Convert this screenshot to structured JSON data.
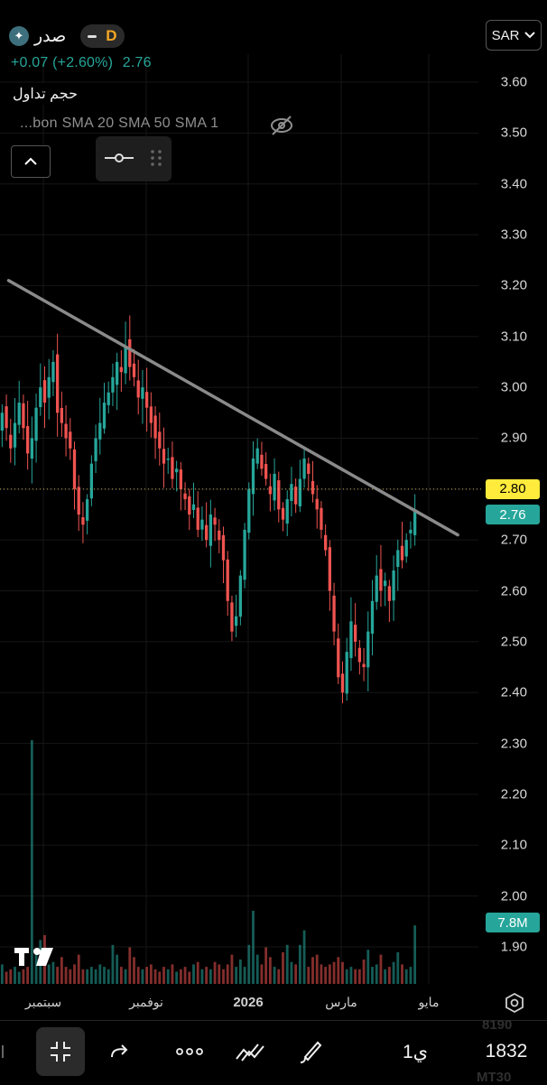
{
  "header": {
    "symbol_logo_icon": "sadr-logo-icon",
    "symbol": "صدر",
    "interval_badge": "D",
    "change": "+0.07 (+2.60%)",
    "last_price": "2.76",
    "volume_label": "حجم تداول",
    "indicators": "...bon SMA 20 SMA 50 SMA 1",
    "currency": "SAR"
  },
  "chart_data": {
    "type": "candlestick",
    "title": "",
    "y_axis": {
      "ticks": [
        "3.60",
        "3.50",
        "3.40",
        "3.30",
        "3.20",
        "3.10",
        "3.00",
        "2.90",
        "2.80",
        "2.70",
        "2.60",
        "2.50",
        "2.40",
        "2.30",
        "2.20",
        "2.10",
        "2.00",
        "1.90"
      ],
      "range": [
        1.84,
        3.67
      ]
    },
    "x_axis": {
      "ticks": [
        "سبتمبر",
        "نوفمبر",
        "2026",
        "مارس",
        "مايو"
      ]
    },
    "trend_line": {
      "start": {
        "date": "2025-08-20",
        "price": 3.21
      },
      "end": {
        "date": "2026-05-08",
        "price": 2.71
      }
    },
    "current_price_line": 2.8,
    "price_labels": [
      {
        "label": "2.80",
        "color": "#ffeb3b"
      },
      {
        "label": "2.76",
        "color": "#26a69a"
      }
    ],
    "volume_label": "7.8M",
    "up_color": "#26a69a",
    "down_color": "#ef5350",
    "close_series": [
      2.95,
      2.92,
      2.88,
      2.93,
      2.97,
      2.92,
      2.87,
      2.9,
      2.96,
      3.0,
      2.97,
      3.02,
      3.05,
      2.95,
      2.93,
      2.9,
      2.88,
      2.8,
      2.75,
      2.73,
      2.78,
      2.85,
      2.9,
      2.93,
      2.97,
      2.99,
      3.02,
      3.05,
      3.03,
      3.08,
      3.04,
      3.02,
      2.98,
      3.0,
      2.96,
      2.93,
      2.9,
      2.88,
      2.85,
      2.86,
      2.82,
      2.84,
      2.8,
      2.78,
      2.75,
      2.77,
      2.72,
      2.74,
      2.7,
      2.75,
      2.73,
      2.7,
      2.66,
      2.58,
      2.52,
      2.55,
      2.63,
      2.72,
      2.8,
      2.86,
      2.88,
      2.84,
      2.82,
      2.79,
      2.83,
      2.76,
      2.74,
      2.78,
      2.81,
      2.77,
      2.82,
      2.86,
      2.83,
      2.79,
      2.76,
      2.72,
      2.68,
      2.6,
      2.52,
      2.43,
      2.4,
      2.48,
      2.54,
      2.5,
      2.46,
      2.45,
      2.52,
      2.58,
      2.63,
      2.6,
      2.62,
      2.58,
      2.64,
      2.68,
      2.66,
      2.7,
      2.72,
      2.76
    ],
    "volume_relative": [
      0.08,
      0.05,
      0.06,
      0.07,
      0.05,
      0.06,
      0.07,
      1.0,
      0.12,
      0.18,
      0.2,
      0.08,
      0.09,
      0.07,
      0.11,
      0.07,
      0.06,
      0.08,
      0.12,
      0.06,
      0.06,
      0.07,
      0.06,
      0.08,
      0.07,
      0.06,
      0.16,
      0.12,
      0.07,
      0.06,
      0.15,
      0.11,
      0.07,
      0.06,
      0.07,
      0.08,
      0.06,
      0.05,
      0.07,
      0.06,
      0.08,
      0.05,
      0.06,
      0.07,
      0.05,
      0.08,
      0.09,
      0.06,
      0.07,
      0.06,
      0.09,
      0.08,
      0.06,
      0.08,
      0.12,
      0.07,
      0.1,
      0.07,
      0.16,
      0.3,
      0.12,
      0.08,
      0.15,
      0.11,
      0.07,
      0.06,
      0.13,
      0.16,
      0.09,
      0.08,
      0.16,
      0.22,
      0.07,
      0.11,
      0.12,
      0.08,
      0.07,
      0.08,
      0.09,
      0.11,
      0.09,
      0.06,
      0.07,
      0.06,
      0.06,
      0.1,
      0.14,
      0.07,
      0.08,
      0.12,
      0.06,
      0.07,
      0.09,
      0.13,
      0.08,
      0.06,
      0.07,
      0.24
    ]
  },
  "toolbar": {
    "fullscreen_icon": "minimize-icon",
    "redo_icon": "redo-icon",
    "more_icon": "more-dots-icon",
    "draw_icon": "line-tools-icon",
    "brush_icon": "brush-icon",
    "interval": "1ي",
    "symbol_code": "1832",
    "ghost_top": "8190",
    "ghost_bottom": "MT30"
  },
  "branding": {
    "logo_icon": "tradingview-logo-icon"
  },
  "settings_icon": "settings-hex-icon"
}
